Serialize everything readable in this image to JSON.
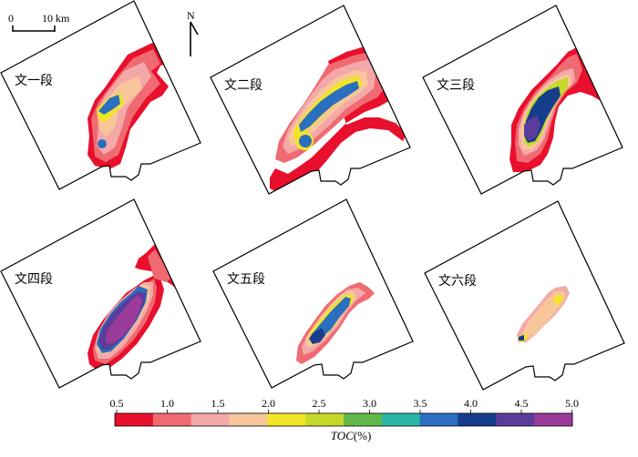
{
  "scale_bar": {
    "zero_label": "0",
    "length_label": "10 km"
  },
  "north_arrow": {
    "label": "N"
  },
  "panels": [
    {
      "label": "文一段"
    },
    {
      "label": "文二段"
    },
    {
      "label": "文三段"
    },
    {
      "label": "文四段"
    },
    {
      "label": "文五段"
    },
    {
      "label": "文六段"
    }
  ],
  "legend": {
    "title_italic": "TOC",
    "title_rest": "(%)",
    "ticks": [
      "0.5",
      "1.0",
      "1.5",
      "2.0",
      "2.5",
      "3.0",
      "3.5",
      "4.0",
      "4.5",
      "5.0"
    ],
    "colors": [
      "#e8102c",
      "#f06a72",
      "#f4a9a8",
      "#f7c69a",
      "#f2e427",
      "#c6d92b",
      "#62b848",
      "#2bb6a6",
      "#2a6fc0",
      "#163d8c",
      "#5a3c9b",
      "#9b3a98"
    ]
  }
}
